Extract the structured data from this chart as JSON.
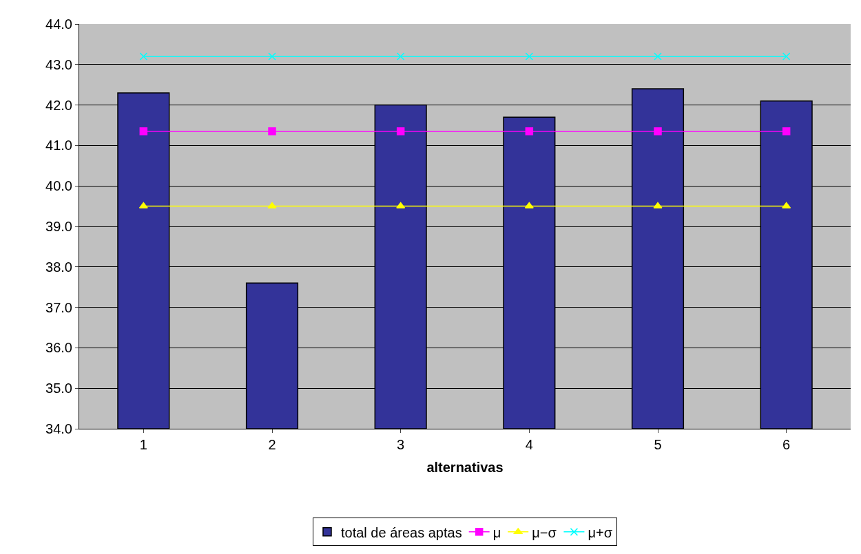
{
  "chart_data": {
    "type": "bar",
    "xlabel": "alternativas",
    "categories": [
      "1",
      "2",
      "3",
      "4",
      "5",
      "6"
    ],
    "series": [
      {
        "name": "total de áreas aptas",
        "color": "#333399",
        "values": [
          42.3,
          37.6,
          42.0,
          41.7,
          42.4,
          42.1
        ]
      },
      {
        "name": "μ",
        "type": "line",
        "color": "#ff00ff",
        "marker": "square",
        "values": [
          41.35,
          41.35,
          41.35,
          41.35,
          41.35,
          41.35
        ]
      },
      {
        "name": "μ−σ",
        "type": "line",
        "color": "#ffff00",
        "marker": "triangle",
        "values": [
          39.5,
          39.5,
          39.5,
          39.5,
          39.5,
          39.5
        ]
      },
      {
        "name": "μ+σ",
        "type": "line",
        "color": "#00ffff",
        "marker": "cross",
        "values": [
          43.2,
          43.2,
          43.2,
          43.2,
          43.2,
          43.2
        ]
      }
    ],
    "ylim": [
      34,
      44
    ],
    "yticks": [
      {
        "value": 34,
        "label": "34.0"
      },
      {
        "value": 35,
        "label": "35.0"
      },
      {
        "value": 36,
        "label": "36.0"
      },
      {
        "value": 37,
        "label": "37.0"
      },
      {
        "value": 38,
        "label": "38.0"
      },
      {
        "value": 39,
        "label": "39.0"
      },
      {
        "value": 40,
        "label": "40.0"
      },
      {
        "value": 41,
        "label": "41.0"
      },
      {
        "value": 42,
        "label": "42.0"
      },
      {
        "value": 43,
        "label": "43.0"
      },
      {
        "value": 44,
        "label": "44.0"
      }
    ],
    "grid": "y",
    "legend": "bottom"
  }
}
